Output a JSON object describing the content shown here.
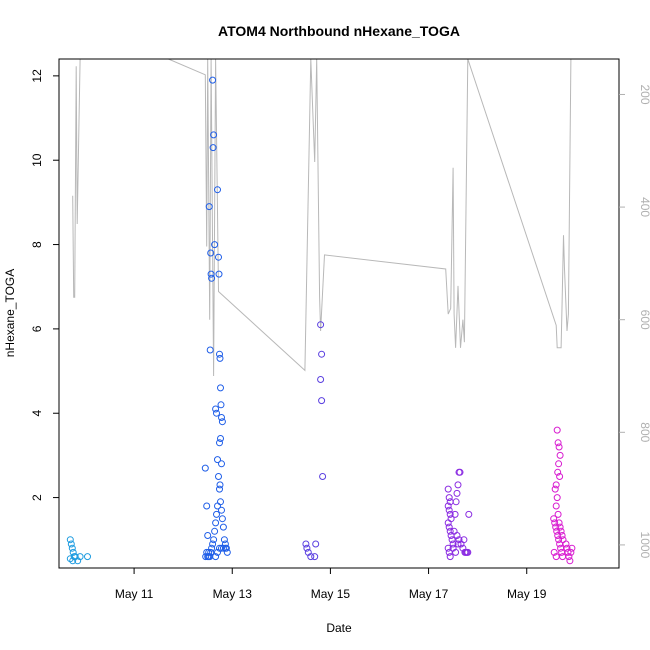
{
  "chart_data": {
    "type": "scatter",
    "title": "ATOM4 Northbound nHexane_TOGA",
    "xlabel": "Date",
    "ylabel": "nHexane_TOGA",
    "x_ticks": [
      {
        "label": "May 11",
        "day": 11.0
      },
      {
        "label": "May 13",
        "day": 13.0
      },
      {
        "label": "May 15",
        "day": 15.0
      },
      {
        "label": "May 17",
        "day": 17.0
      },
      {
        "label": "May 19",
        "day": 19.0
      }
    ],
    "xlim": [
      9.47,
      20.88
    ],
    "ylim": [
      0.33,
      12.4
    ],
    "y_ticks": [
      2,
      4,
      6,
      8,
      10,
      12
    ],
    "right_axis": {
      "ylim": [
        1041,
        137
      ],
      "ticks": [
        200,
        400,
        600,
        800,
        1000
      ],
      "color": "#b0b0b0",
      "line": [
        [
          9.75,
          380
        ],
        [
          9.77,
          560
        ],
        [
          9.79,
          560
        ],
        [
          9.82,
          150
        ],
        [
          9.84,
          430
        ],
        [
          9.9,
          137
        ],
        [
          11.7,
          137
        ],
        [
          12.45,
          165
        ],
        [
          12.48,
          470
        ],
        [
          12.5,
          137
        ],
        [
          12.54,
          600
        ],
        [
          12.57,
          137
        ],
        [
          12.62,
          700
        ],
        [
          12.66,
          137
        ],
        [
          12.72,
          550
        ],
        [
          14.48,
          690
        ],
        [
          14.6,
          137
        ],
        [
          14.68,
          320
        ],
        [
          14.72,
          137
        ],
        [
          14.78,
          560
        ],
        [
          14.8,
          620
        ],
        [
          14.88,
          485
        ],
        [
          17.35,
          510
        ],
        [
          17.4,
          590
        ],
        [
          17.45,
          580
        ],
        [
          17.5,
          330
        ],
        [
          17.52,
          590
        ],
        [
          17.55,
          650
        ],
        [
          17.6,
          540
        ],
        [
          17.65,
          650
        ],
        [
          17.7,
          600
        ],
        [
          17.73,
          640
        ],
        [
          17.8,
          137
        ],
        [
          19.6,
          610
        ],
        [
          19.62,
          650
        ],
        [
          19.7,
          650
        ],
        [
          19.72,
          570
        ],
        [
          19.75,
          450
        ],
        [
          19.77,
          510
        ],
        [
          19.82,
          620
        ],
        [
          19.85,
          590
        ],
        [
          19.9,
          137
        ]
      ]
    },
    "series": [
      {
        "color": "#1e9ce0",
        "points": [
          [
            9.7,
            1.0
          ],
          [
            9.72,
            0.9
          ],
          [
            9.74,
            0.8
          ],
          [
            9.76,
            0.7
          ],
          [
            9.78,
            0.6
          ],
          [
            9.7,
            0.55
          ],
          [
            9.75,
            0.5
          ],
          [
            9.8,
            0.6
          ],
          [
            9.85,
            0.5
          ],
          [
            9.9,
            0.6
          ],
          [
            10.05,
            0.6
          ]
        ]
      },
      {
        "color": "#1f5ee8",
        "points": [
          [
            12.45,
            2.7
          ],
          [
            12.48,
            1.8
          ],
          [
            12.5,
            1.1
          ],
          [
            12.52,
            0.7
          ],
          [
            12.53,
            8.9
          ],
          [
            12.55,
            5.5
          ],
          [
            12.56,
            7.8
          ],
          [
            12.57,
            7.3
          ],
          [
            12.58,
            7.2
          ],
          [
            12.6,
            11.9
          ],
          [
            12.62,
            10.6
          ],
          [
            12.61,
            10.3
          ],
          [
            12.64,
            8.0
          ],
          [
            12.66,
            4.1
          ],
          [
            12.68,
            4.0
          ],
          [
            12.7,
            2.9
          ],
          [
            12.72,
            2.5
          ],
          [
            12.74,
            2.2
          ],
          [
            12.76,
            1.9
          ],
          [
            12.78,
            1.7
          ],
          [
            12.8,
            1.5
          ],
          [
            12.82,
            1.3
          ],
          [
            12.84,
            1.0
          ],
          [
            12.86,
            0.9
          ],
          [
            12.88,
            0.8
          ],
          [
            12.7,
            9.3
          ],
          [
            12.72,
            7.7
          ],
          [
            12.73,
            7.3
          ],
          [
            12.74,
            5.4
          ],
          [
            12.75,
            5.3
          ],
          [
            12.76,
            4.6
          ],
          [
            12.77,
            4.2
          ],
          [
            12.78,
            3.9
          ],
          [
            12.8,
            3.8
          ],
          [
            12.76,
            3.4
          ],
          [
            12.74,
            3.3
          ],
          [
            12.78,
            2.8
          ],
          [
            12.75,
            2.3
          ],
          [
            12.7,
            1.8
          ],
          [
            12.68,
            1.6
          ],
          [
            12.66,
            1.4
          ],
          [
            12.64,
            1.2
          ],
          [
            12.62,
            1.0
          ],
          [
            12.6,
            0.9
          ],
          [
            12.58,
            0.8
          ],
          [
            12.56,
            0.7
          ],
          [
            12.54,
            0.6
          ],
          [
            12.52,
            0.6
          ],
          [
            12.5,
            0.6
          ],
          [
            12.48,
            0.7
          ],
          [
            12.46,
            0.6
          ],
          [
            12.66,
            0.6
          ],
          [
            12.7,
            0.7
          ],
          [
            12.74,
            0.8
          ],
          [
            12.78,
            0.8
          ],
          [
            12.82,
            0.8
          ],
          [
            12.86,
            0.8
          ],
          [
            12.9,
            0.7
          ]
        ]
      },
      {
        "color": "#5a3fe0",
        "points": [
          [
            14.5,
            0.9
          ],
          [
            14.52,
            0.8
          ],
          [
            14.55,
            0.7
          ],
          [
            14.6,
            0.6
          ],
          [
            14.68,
            0.6
          ],
          [
            14.7,
            0.9
          ],
          [
            14.8,
            6.1
          ],
          [
            14.82,
            5.4
          ],
          [
            14.8,
            4.8
          ],
          [
            14.82,
            4.3
          ],
          [
            14.84,
            2.5
          ]
        ]
      },
      {
        "color": "#8a2be2",
        "points": [
          [
            17.4,
            2.2
          ],
          [
            17.42,
            2.0
          ],
          [
            17.44,
            1.9
          ],
          [
            17.4,
            1.8
          ],
          [
            17.42,
            1.7
          ],
          [
            17.44,
            1.6
          ],
          [
            17.46,
            1.5
          ],
          [
            17.4,
            1.4
          ],
          [
            17.42,
            1.3
          ],
          [
            17.44,
            1.2
          ],
          [
            17.46,
            1.1
          ],
          [
            17.48,
            1.0
          ],
          [
            17.5,
            0.9
          ],
          [
            17.4,
            0.8
          ],
          [
            17.42,
            0.7
          ],
          [
            17.44,
            0.6
          ],
          [
            17.5,
            0.8
          ],
          [
            17.55,
            0.7
          ],
          [
            17.6,
            0.9
          ],
          [
            17.62,
            2.6
          ],
          [
            17.64,
            2.6
          ],
          [
            17.6,
            2.3
          ],
          [
            17.58,
            2.1
          ],
          [
            17.56,
            1.9
          ],
          [
            17.54,
            1.6
          ],
          [
            17.52,
            1.2
          ],
          [
            17.58,
            1.1
          ],
          [
            17.62,
            1.0
          ],
          [
            17.66,
            0.9
          ],
          [
            17.7,
            0.8
          ],
          [
            17.74,
            0.7
          ],
          [
            17.76,
            0.7
          ],
          [
            17.8,
            0.7
          ],
          [
            17.82,
            1.6
          ],
          [
            17.78,
            0.7
          ],
          [
            17.72,
            1.0
          ]
        ]
      },
      {
        "color": "#d81bd0",
        "points": [
          [
            19.55,
            1.5
          ],
          [
            19.57,
            1.4
          ],
          [
            19.59,
            1.3
          ],
          [
            19.61,
            1.2
          ],
          [
            19.63,
            1.1
          ],
          [
            19.65,
            1.0
          ],
          [
            19.67,
            0.9
          ],
          [
            19.69,
            0.8
          ],
          [
            19.71,
            0.7
          ],
          [
            19.73,
            0.6
          ],
          [
            19.62,
            3.6
          ],
          [
            19.64,
            3.3
          ],
          [
            19.66,
            3.2
          ],
          [
            19.68,
            3.0
          ],
          [
            19.65,
            2.8
          ],
          [
            19.63,
            2.6
          ],
          [
            19.67,
            2.5
          ],
          [
            19.6,
            2.3
          ],
          [
            19.58,
            2.2
          ],
          [
            19.62,
            2.0
          ],
          [
            19.6,
            1.8
          ],
          [
            19.64,
            1.6
          ],
          [
            19.66,
            1.4
          ],
          [
            19.68,
            1.3
          ],
          [
            19.7,
            1.2
          ],
          [
            19.72,
            1.1
          ],
          [
            19.74,
            1.0
          ],
          [
            19.56,
            0.7
          ],
          [
            19.6,
            0.6
          ],
          [
            19.8,
            0.9
          ],
          [
            19.82,
            0.8
          ],
          [
            19.84,
            0.7
          ],
          [
            19.86,
            0.6
          ],
          [
            19.88,
            0.5
          ],
          [
            19.9,
            0.7
          ],
          [
            19.92,
            0.8
          ]
        ]
      }
    ]
  }
}
